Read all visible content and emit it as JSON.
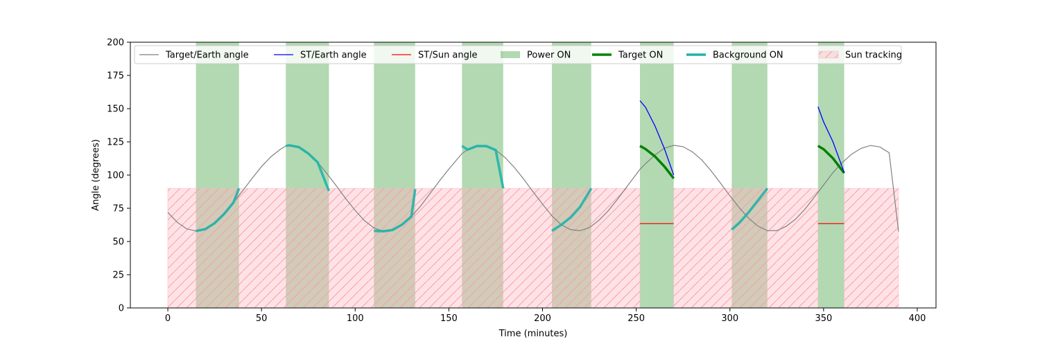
{
  "chart_data": {
    "type": "line",
    "xlabel": "Time (minutes)",
    "ylabel": "Angle (degrees)",
    "xlim": [
      -20,
      410
    ],
    "ylim": [
      0,
      200
    ],
    "xticks": [
      0,
      50,
      100,
      150,
      200,
      250,
      300,
      350,
      400
    ],
    "yticks": [
      0,
      25,
      50,
      75,
      100,
      125,
      150,
      175,
      200
    ],
    "legend_position": "top",
    "colors": {
      "target_earth": "#808080",
      "st_earth": "#0000ff",
      "st_sun": "#ff0000",
      "power_on": "#008000",
      "target_on": "#008000",
      "background_on": "#20b2aa",
      "sun_tracking": "#ffb6c1"
    },
    "legend": [
      {
        "key": "target_earth",
        "label": "Target/Earth angle",
        "style": "line"
      },
      {
        "key": "st_earth",
        "label": "ST/Earth angle",
        "style": "line"
      },
      {
        "key": "st_sun",
        "label": "ST/Sun angle",
        "style": "line"
      },
      {
        "key": "power_on",
        "label": "Power ON",
        "style": "patch"
      },
      {
        "key": "target_on",
        "label": "Target ON",
        "style": "thick"
      },
      {
        "key": "background_on",
        "label": "Background ON",
        "style": "thick"
      },
      {
        "key": "sun_tracking",
        "label": "Sun tracking",
        "style": "hatch"
      }
    ],
    "target_earth_angle": {
      "x": [
        0,
        5,
        10,
        15,
        20,
        25,
        30,
        35,
        40,
        45,
        50,
        55,
        60,
        63,
        65,
        70,
        75,
        80,
        85,
        90,
        95,
        100,
        105,
        110,
        115,
        120,
        125,
        130,
        135,
        140,
        145,
        150,
        157,
        160,
        165,
        170,
        175,
        180,
        185,
        190,
        195,
        200,
        205,
        210,
        215,
        220,
        225,
        230,
        235,
        240,
        245,
        252,
        255,
        260,
        265,
        270,
        275,
        280,
        285,
        290,
        295,
        300,
        305,
        310,
        315,
        320,
        325,
        330,
        335,
        340,
        345,
        350,
        355,
        360,
        365,
        370,
        375,
        380,
        385,
        390
      ],
      "y": [
        72,
        64.5,
        59.6,
        57.9,
        59.3,
        63.8,
        70.6,
        79.2,
        88.3,
        97.6,
        106.4,
        113.8,
        119.3,
        122,
        122.4,
        121,
        116.2,
        109.6,
        101,
        91.7,
        82.2,
        73.4,
        65.6,
        60.2,
        57.7,
        58.7,
        62.7,
        68.8,
        76.9,
        86.2,
        95.6,
        104.6,
        116.2,
        119.1,
        121.9,
        121.8,
        118.8,
        113.2,
        105.7,
        96.9,
        87.3,
        78.1,
        69.3,
        62.6,
        58.9,
        58.1,
        60.4,
        65.9,
        73,
        81.8,
        91.2,
        104.3,
        108.6,
        115.1,
        120.2,
        122.4,
        121.4,
        117.4,
        111.4,
        103.1,
        93.9,
        84.5,
        75.4,
        67.5,
        61.5,
        58.2,
        58.1,
        61.4,
        66.7,
        74.2,
        83.3,
        92.6,
        101.9,
        109.5,
        115.8,
        120.1,
        122.3,
        121.2,
        116.8,
        57.5
      ]
    },
    "power_on": [
      [
        15,
        38
      ],
      [
        63,
        86
      ],
      [
        110,
        132
      ],
      [
        157,
        179
      ],
      [
        205,
        226
      ],
      [
        252,
        270
      ],
      [
        301,
        320
      ],
      [
        347,
        361
      ]
    ],
    "sun_tracking": [
      [
        0,
        252
      ],
      [
        270,
        347
      ],
      [
        361,
        390
      ]
    ],
    "sun_tracking_level": 90,
    "background_on": [
      {
        "x": [
          15,
          20,
          25,
          30,
          35,
          38
        ],
        "y": [
          57.9,
          59.3,
          63.8,
          70.6,
          79.2,
          90
        ]
      },
      {
        "x": [
          63,
          65,
          70,
          75,
          80,
          86
        ],
        "y": [
          122,
          122.4,
          121,
          116.2,
          109.6,
          88
        ]
      },
      {
        "x": [
          110,
          115,
          120,
          125,
          130,
          132
        ],
        "y": [
          58,
          57.7,
          58.7,
          62.7,
          68.8,
          89.5
        ]
      },
      {
        "x": [
          157,
          160,
          165,
          170,
          175,
          179
        ],
        "y": [
          122,
          119.1,
          121.9,
          121.8,
          118.8,
          90
        ]
      },
      {
        "x": [
          205,
          210,
          215,
          220,
          226
        ],
        "y": [
          58,
          62.6,
          68,
          76,
          90
        ]
      },
      {
        "x": [
          301,
          305,
          310,
          315,
          320
        ],
        "y": [
          59,
          64,
          72,
          81,
          90
        ]
      }
    ],
    "target_on": [
      {
        "x": [
          252,
          255,
          260,
          265,
          270
        ],
        "y": [
          122,
          119.6,
          114,
          106.5,
          97.5
        ]
      },
      {
        "x": [
          347,
          350,
          355,
          361
        ],
        "y": [
          122,
          119.5,
          112.6,
          101.5
        ]
      }
    ],
    "st_earth_angle": [
      {
        "x": [
          252,
          255,
          260,
          265,
          270
        ],
        "y": [
          156,
          151,
          137,
          120,
          100
        ]
      },
      {
        "x": [
          347,
          350,
          355,
          361
        ],
        "y": [
          151.5,
          140,
          125,
          102
        ]
      }
    ],
    "st_sun_angle": [
      {
        "x": [
          252,
          270
        ],
        "y": [
          63.5,
          63.5
        ]
      },
      {
        "x": [
          347,
          361
        ],
        "y": [
          63.5,
          63.5
        ]
      }
    ]
  }
}
